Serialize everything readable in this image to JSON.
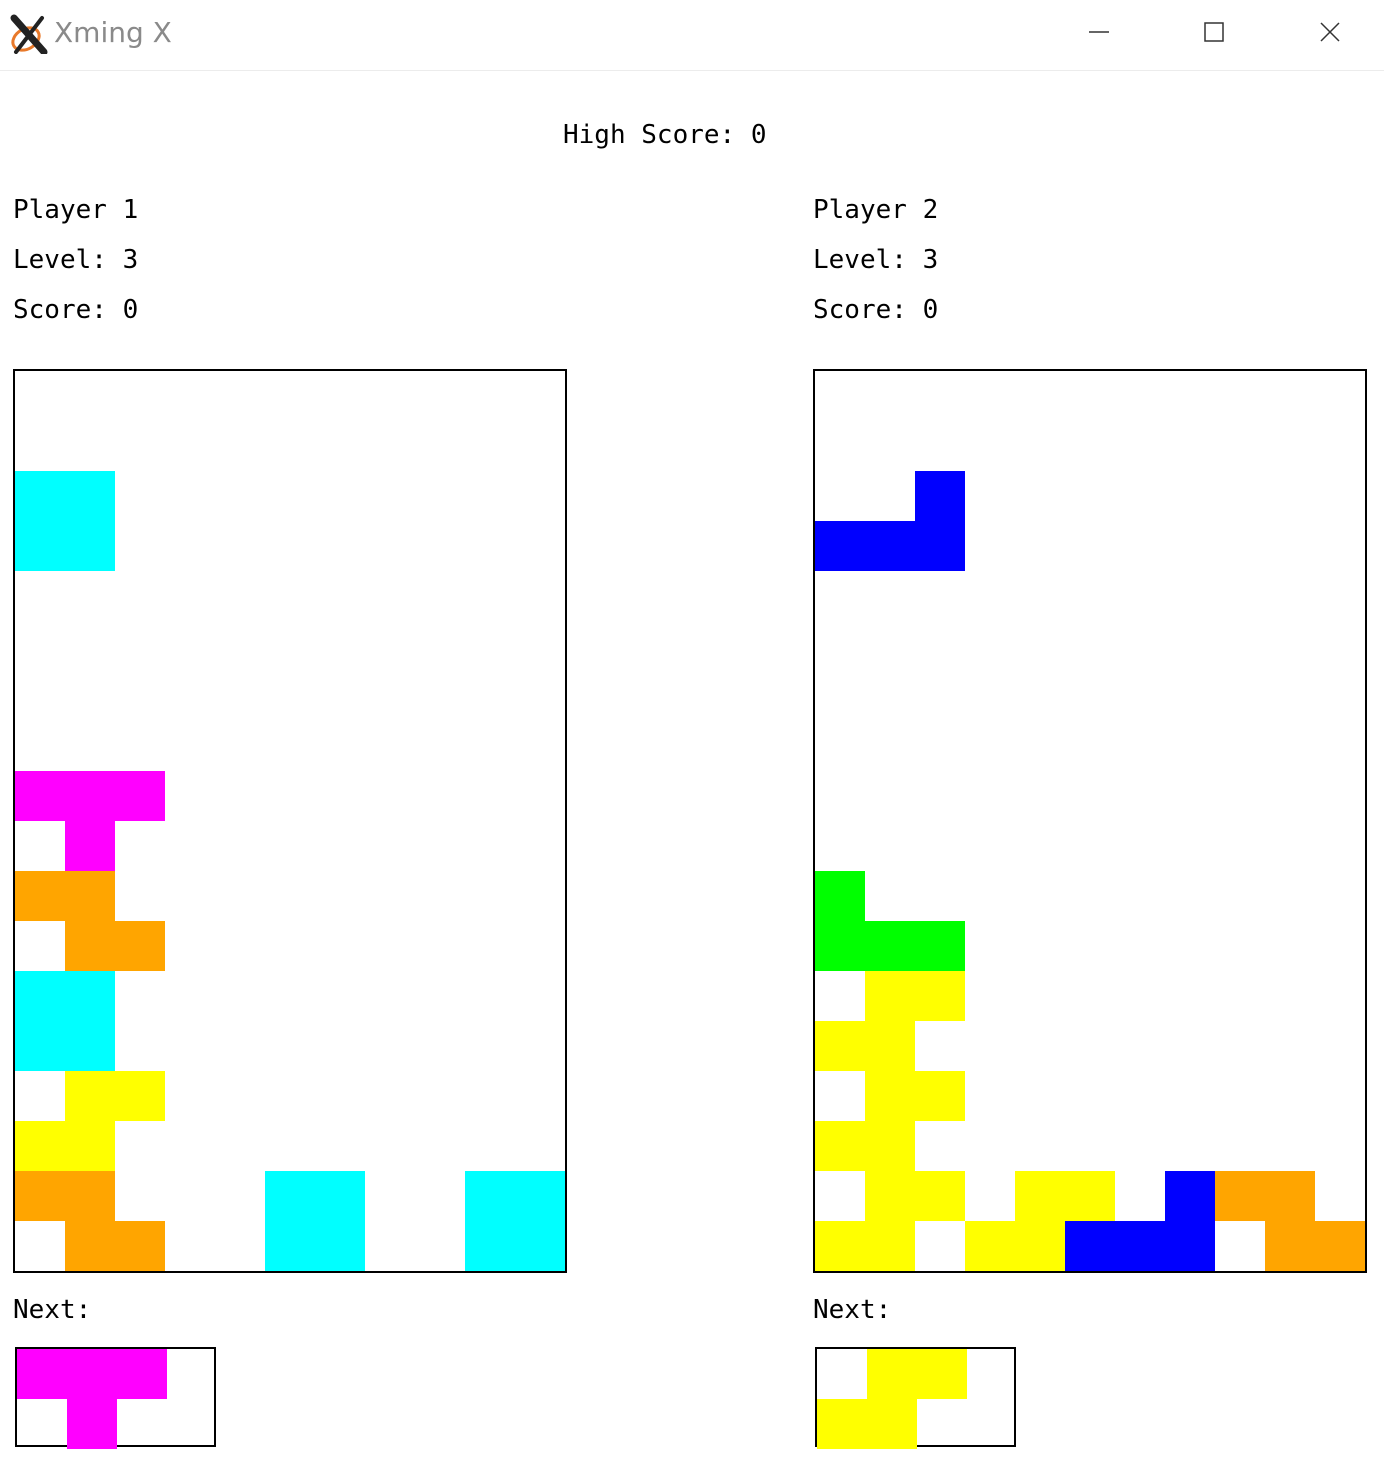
{
  "window": {
    "title": "Xming X",
    "icon": "xming-x-logo"
  },
  "controls": {
    "minimize_icon": "minimize-icon",
    "maximize_icon": "maximize-icon",
    "close_icon": "close-icon"
  },
  "high_score": {
    "label": "High Score:",
    "value": "0",
    "text": "High Score: 0"
  },
  "players": [
    {
      "name": "Player 1",
      "level_text": "Level: 3",
      "score_text": "Score: 0",
      "next_label": "Next:",
      "board_cells": [
        {
          "col": 0,
          "row": 2,
          "color": "#00ffff"
        },
        {
          "col": 1,
          "row": 2,
          "color": "#00ffff"
        },
        {
          "col": 0,
          "row": 3,
          "color": "#00ffff"
        },
        {
          "col": 1,
          "row": 3,
          "color": "#00ffff"
        },
        {
          "col": 0,
          "row": 8,
          "color": "#ff00ff"
        },
        {
          "col": 1,
          "row": 8,
          "color": "#ff00ff"
        },
        {
          "col": 2,
          "row": 8,
          "color": "#ff00ff"
        },
        {
          "col": 1,
          "row": 9,
          "color": "#ff00ff"
        },
        {
          "col": 0,
          "row": 10,
          "color": "#ffa500"
        },
        {
          "col": 1,
          "row": 10,
          "color": "#ffa500"
        },
        {
          "col": 1,
          "row": 11,
          "color": "#ffa500"
        },
        {
          "col": 2,
          "row": 11,
          "color": "#ffa500"
        },
        {
          "col": 0,
          "row": 12,
          "color": "#00ffff"
        },
        {
          "col": 1,
          "row": 12,
          "color": "#00ffff"
        },
        {
          "col": 0,
          "row": 13,
          "color": "#00ffff"
        },
        {
          "col": 1,
          "row": 13,
          "color": "#00ffff"
        },
        {
          "col": 1,
          "row": 14,
          "color": "#ffff00"
        },
        {
          "col": 2,
          "row": 14,
          "color": "#ffff00"
        },
        {
          "col": 0,
          "row": 15,
          "color": "#ffff00"
        },
        {
          "col": 1,
          "row": 15,
          "color": "#ffff00"
        },
        {
          "col": 0,
          "row": 16,
          "color": "#ffa500"
        },
        {
          "col": 1,
          "row": 16,
          "color": "#ffa500"
        },
        {
          "col": 5,
          "row": 16,
          "color": "#00ffff"
        },
        {
          "col": 6,
          "row": 16,
          "color": "#00ffff"
        },
        {
          "col": 9,
          "row": 16,
          "color": "#00ffff"
        },
        {
          "col": 10,
          "row": 16,
          "color": "#00ffff"
        },
        {
          "col": 1,
          "row": 17,
          "color": "#ffa500"
        },
        {
          "col": 2,
          "row": 17,
          "color": "#ffa500"
        },
        {
          "col": 5,
          "row": 17,
          "color": "#00ffff"
        },
        {
          "col": 6,
          "row": 17,
          "color": "#00ffff"
        },
        {
          "col": 9,
          "row": 17,
          "color": "#00ffff"
        },
        {
          "col": 10,
          "row": 17,
          "color": "#00ffff"
        }
      ],
      "next_cells": [
        {
          "col": 0,
          "row": 0,
          "color": "#ff00ff"
        },
        {
          "col": 1,
          "row": 0,
          "color": "#ff00ff"
        },
        {
          "col": 2,
          "row": 0,
          "color": "#ff00ff"
        },
        {
          "col": 1,
          "row": 1,
          "color": "#ff00ff"
        }
      ]
    },
    {
      "name": "Player 2",
      "level_text": "Level: 3",
      "score_text": "Score: 0",
      "next_label": "Next:",
      "board_cells": [
        {
          "col": 2,
          "row": 2,
          "color": "#0000ff"
        },
        {
          "col": 0,
          "row": 3,
          "color": "#0000ff"
        },
        {
          "col": 1,
          "row": 3,
          "color": "#0000ff"
        },
        {
          "col": 2,
          "row": 3,
          "color": "#0000ff"
        },
        {
          "col": 0,
          "row": 10,
          "color": "#00ff00"
        },
        {
          "col": 0,
          "row": 11,
          "color": "#00ff00"
        },
        {
          "col": 1,
          "row": 11,
          "color": "#00ff00"
        },
        {
          "col": 2,
          "row": 11,
          "color": "#00ff00"
        },
        {
          "col": 1,
          "row": 12,
          "color": "#ffff00"
        },
        {
          "col": 2,
          "row": 12,
          "color": "#ffff00"
        },
        {
          "col": 0,
          "row": 13,
          "color": "#ffff00"
        },
        {
          "col": 1,
          "row": 13,
          "color": "#ffff00"
        },
        {
          "col": 1,
          "row": 14,
          "color": "#ffff00"
        },
        {
          "col": 2,
          "row": 14,
          "color": "#ffff00"
        },
        {
          "col": 0,
          "row": 15,
          "color": "#ffff00"
        },
        {
          "col": 1,
          "row": 15,
          "color": "#ffff00"
        },
        {
          "col": 1,
          "row": 16,
          "color": "#ffff00"
        },
        {
          "col": 2,
          "row": 16,
          "color": "#ffff00"
        },
        {
          "col": 4,
          "row": 16,
          "color": "#ffff00"
        },
        {
          "col": 5,
          "row": 16,
          "color": "#ffff00"
        },
        {
          "col": 7,
          "row": 16,
          "color": "#0000ff"
        },
        {
          "col": 8,
          "row": 16,
          "color": "#ffa500"
        },
        {
          "col": 9,
          "row": 16,
          "color": "#ffa500"
        },
        {
          "col": 0,
          "row": 17,
          "color": "#ffff00"
        },
        {
          "col": 1,
          "row": 17,
          "color": "#ffff00"
        },
        {
          "col": 3,
          "row": 17,
          "color": "#ffff00"
        },
        {
          "col": 4,
          "row": 17,
          "color": "#ffff00"
        },
        {
          "col": 5,
          "row": 17,
          "color": "#0000ff"
        },
        {
          "col": 6,
          "row": 17,
          "color": "#0000ff"
        },
        {
          "col": 7,
          "row": 17,
          "color": "#0000ff"
        },
        {
          "col": 9,
          "row": 17,
          "color": "#ffa500"
        },
        {
          "col": 10,
          "row": 17,
          "color": "#ffa500"
        }
      ],
      "next_cells": [
        {
          "col": 1,
          "row": 0,
          "color": "#ffff00"
        },
        {
          "col": 2,
          "row": 0,
          "color": "#ffff00"
        },
        {
          "col": 0,
          "row": 1,
          "color": "#ffff00"
        },
        {
          "col": 1,
          "row": 1,
          "color": "#ffff00"
        }
      ]
    }
  ]
}
